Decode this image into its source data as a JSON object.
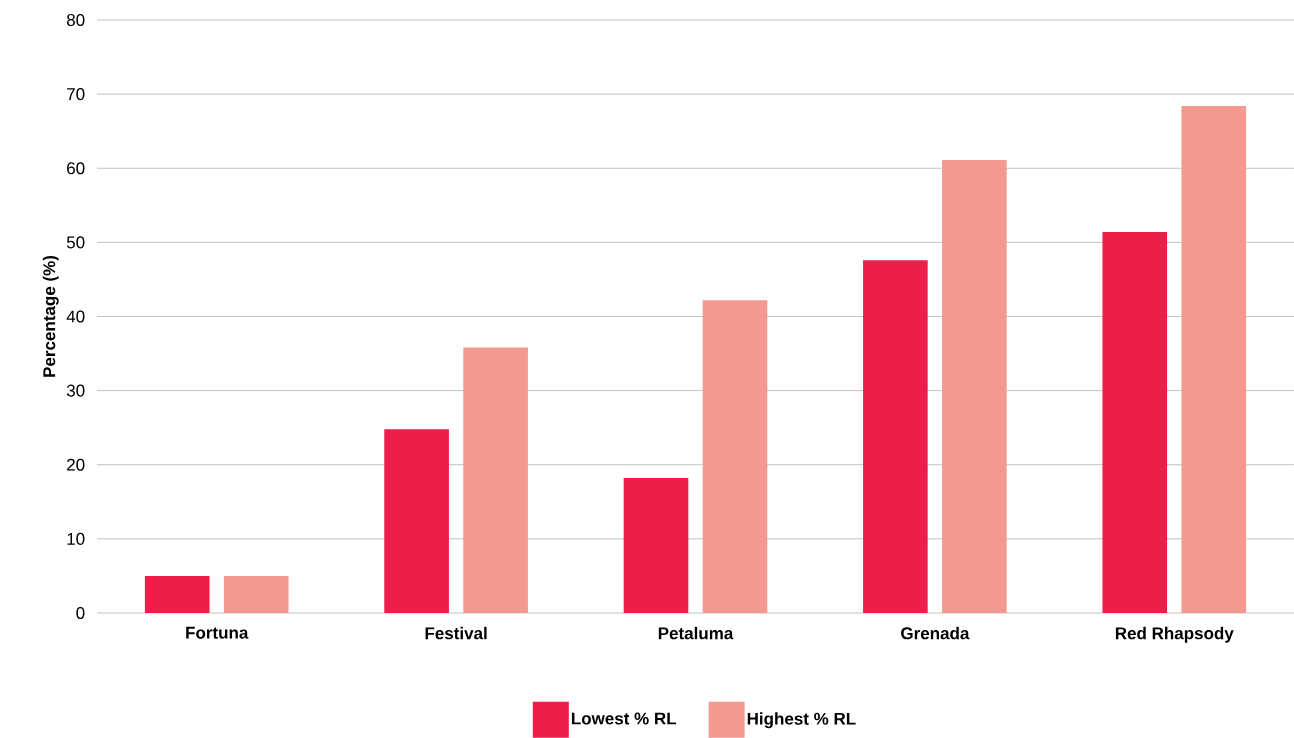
{
  "chart_data": {
    "type": "bar",
    "ylabel": "Percentage (%)",
    "categories": [
      "Fortuna",
      "Festival",
      "Petaluma",
      "Grenada",
      "Red Rhapsody"
    ],
    "series": [
      {
        "name": "Lowest % RL",
        "color": "#ed1e4a",
        "values": [
          5.0,
          24.8,
          18.2,
          47.6,
          51.4
        ]
      },
      {
        "name": "Highest % RL",
        "color": "#f4998f",
        "values": [
          5.0,
          35.8,
          42.2,
          61.1,
          68.4
        ]
      }
    ],
    "ylim": [
      0,
      80
    ],
    "yticks": [
      0,
      10,
      20,
      30,
      40,
      50,
      60,
      70,
      80
    ],
    "grid": "y",
    "legend": "bottom"
  }
}
